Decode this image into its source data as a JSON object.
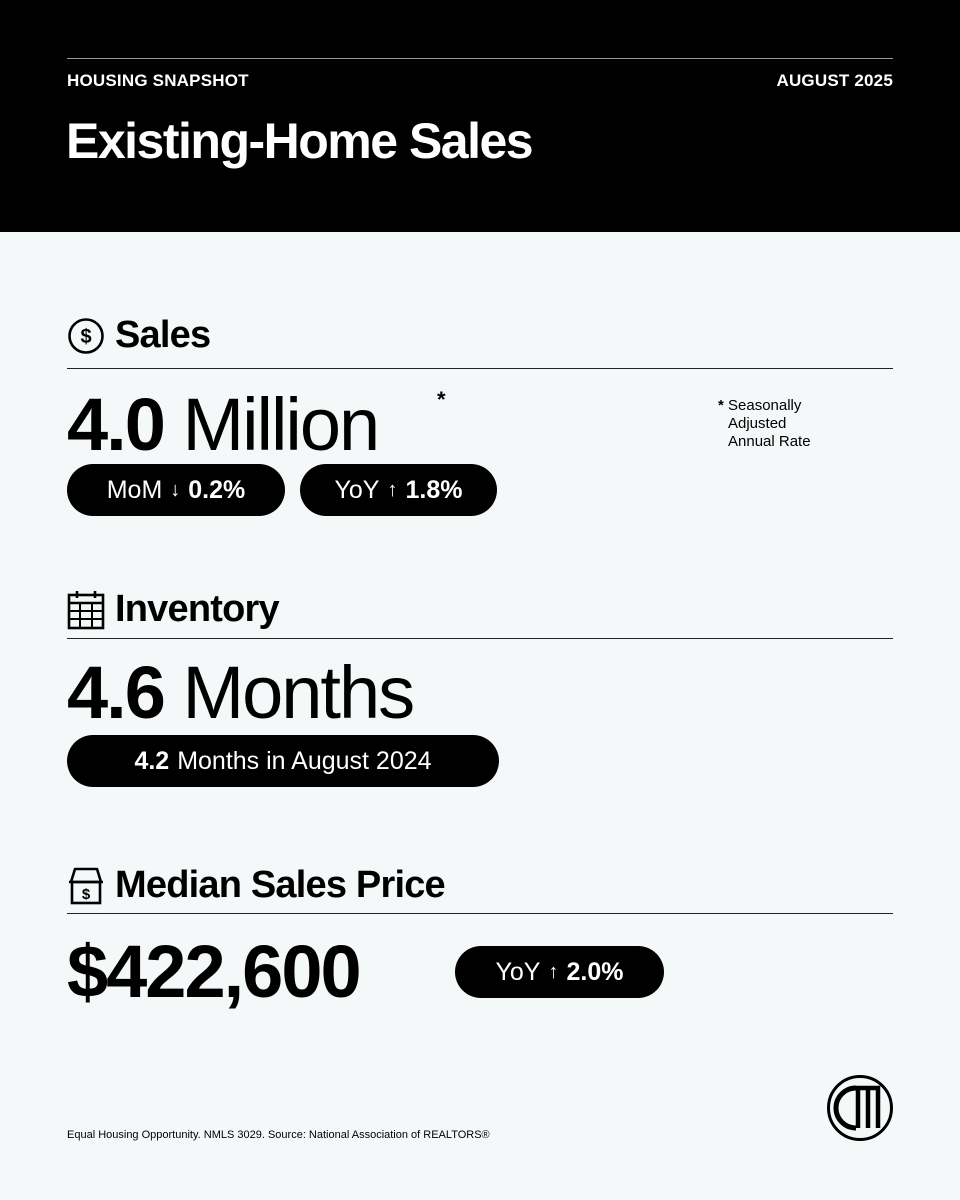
{
  "header": {
    "kicker_left": "HOUSING SNAPSHOT",
    "kicker_right": "AUGUST 2025",
    "title": "Existing-Home Sales"
  },
  "sales": {
    "heading": "Sales",
    "icon": "dollar-circle-icon",
    "value": "4.0",
    "unit": "Million",
    "asterisk": "*",
    "note": {
      "star": "*",
      "line1": "Seasonally",
      "line2": "Adjusted",
      "line3": "Annual Rate"
    },
    "mom": {
      "label": "MoM",
      "arrow": "↓",
      "value": "0.2%"
    },
    "yoy": {
      "label": "YoY",
      "arrow": "↑",
      "value": "1.8%"
    }
  },
  "inventory": {
    "heading": "Inventory",
    "icon": "calendar-icon",
    "value": "4.6",
    "unit": "Months",
    "compare_value": "4.2",
    "compare_text": "Months in August 2024"
  },
  "price": {
    "heading": "Median Sales Price",
    "icon": "house-dollar-icon",
    "value": "$422,600",
    "yoy": {
      "label": "YoY",
      "arrow": "↑",
      "value": "2.0%"
    }
  },
  "footer": {
    "disclaimer": "Equal Housing Opportunity. NMLS 3029. Source: National Association of REALTORS®"
  },
  "logo": {
    "icon": "cm-monogram-logo"
  },
  "colors": {
    "background": "#f4f8f9",
    "header": "#000000",
    "pill": "#000000",
    "text": "#000000"
  }
}
